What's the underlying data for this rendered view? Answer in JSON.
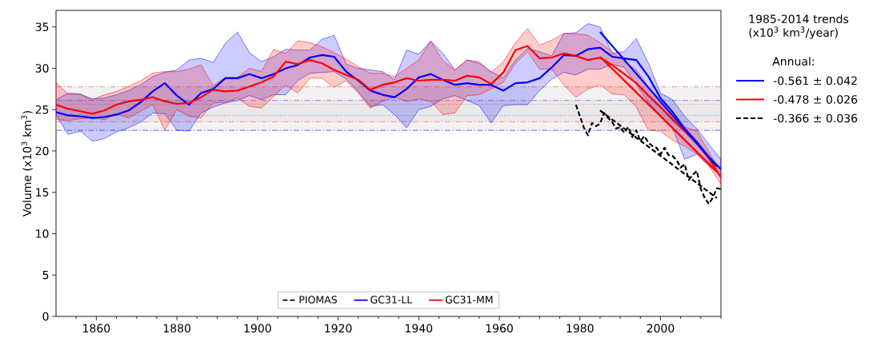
{
  "chart_data": {
    "type": "line",
    "ylabel": "Volume (x10$^{3}$ km$^{3}$)",
    "xlim": [
      1850,
      2015
    ],
    "ylim": [
      0,
      37
    ],
    "xticks": [
      {
        "value": 1855,
        "label": null
      },
      1860,
      {
        "value": 1865,
        "label": null
      },
      {
        "value": 1870,
        "label": null
      },
      {
        "value": 1875,
        "label": null
      },
      1880,
      {
        "value": 1885,
        "label": null
      },
      {
        "value": 1890,
        "label": null
      },
      {
        "value": 1895,
        "label": null
      },
      1900,
      {
        "value": 1905,
        "label": null
      },
      {
        "value": 1910,
        "label": null
      },
      {
        "value": 1915,
        "label": null
      },
      1920,
      {
        "value": 1925,
        "label": null
      },
      {
        "value": 1930,
        "label": null
      },
      {
        "value": 1935,
        "label": null
      },
      1940,
      {
        "value": 1945,
        "label": null
      },
      {
        "value": 1950,
        "label": null
      },
      {
        "value": 1955,
        "label": null
      },
      1960,
      {
        "value": 1965,
        "label": null
      },
      {
        "value": 1970,
        "label": null
      },
      {
        "value": 1975,
        "label": null
      },
      1980,
      {
        "value": 1985,
        "label": null
      },
      {
        "value": 1990,
        "label": null
      },
      {
        "value": 1995,
        "label": null
      },
      2000,
      {
        "value": 2005,
        "label": null
      },
      {
        "value": 2010,
        "label": null
      },
      {
        "value": 2015,
        "label": null
      }
    ],
    "yticks": [
      0,
      5,
      10,
      15,
      20,
      25,
      30,
      35
    ],
    "legend": "bottom",
    "marker": "none",
    "bands": [
      {
        "axis": "y",
        "from": 22.5,
        "to": 26.1,
        "color": "#d9d9d9"
      },
      {
        "axis": "y",
        "from": 23.55,
        "to": 27.75,
        "color": "#d9d9d9"
      }
    ],
    "ref_lines": [
      {
        "axis": "y",
        "value": 27.75,
        "color": "#ff8080",
        "line_style": "dashdot"
      },
      {
        "axis": "y",
        "value": 23.55,
        "color": "#ff8080",
        "line_style": "dashdot"
      },
      {
        "axis": "y",
        "value": 26.1,
        "color": "#8080ff",
        "line_style": "dashdot"
      },
      {
        "axis": "y",
        "value": 22.5,
        "color": "#8080ff",
        "line_style": "dashdot"
      },
      {
        "axis": "y",
        "value": 25.65,
        "color": "#ff8080",
        "line_style": "dotted"
      },
      {
        "axis": "y",
        "value": 24.3,
        "color": "#8080ff",
        "line_style": "dotted"
      }
    ],
    "series": [
      {
        "name": "PIOMAS",
        "color": "#000000",
        "line_style": "dashed",
        "x": [
          1979,
          1980,
          1981,
          1982,
          1983,
          1984,
          1985,
          1986,
          1987,
          1988,
          1989,
          1990,
          1991,
          1992,
          1993,
          1994,
          1995,
          1996,
          1997,
          1998,
          1999,
          2000,
          2001,
          2002,
          2003,
          2004,
          2005,
          2006,
          2007,
          2008,
          2009,
          2010,
          2011,
          2012,
          2013,
          2014,
          2015
        ],
        "values": [
          25.6,
          24.2,
          22.8,
          21.9,
          23.4,
          23.0,
          23.3,
          24.6,
          24.0,
          23.5,
          22.7,
          22.9,
          22.2,
          22.9,
          21.7,
          22.5,
          21.2,
          21.8,
          21.0,
          20.6,
          20.4,
          19.6,
          20.4,
          19.5,
          19.4,
          18.9,
          18.0,
          18.4,
          16.5,
          17.1,
          17.6,
          15.4,
          14.3,
          13.6,
          14.4,
          15.5,
          15.4
        ]
      },
      {
        "name": "GC31-LL",
        "color": "#0000ff",
        "line_style": "solid",
        "x": [
          1850,
          1853,
          1856,
          1859,
          1862,
          1865,
          1868,
          1871,
          1874,
          1877,
          1880,
          1883,
          1886,
          1889,
          1892,
          1895,
          1898,
          1901,
          1904,
          1907,
          1910,
          1913,
          1916,
          1919,
          1922,
          1925,
          1928,
          1931,
          1934,
          1937,
          1940,
          1943,
          1946,
          1949,
          1952,
          1955,
          1958,
          1961,
          1964,
          1967,
          1970,
          1973,
          1976,
          1979,
          1982,
          1985,
          1988,
          1991,
          1994,
          1997,
          2000,
          2003,
          2006,
          2009,
          2012,
          2015
        ],
        "values": [
          24.7,
          24.3,
          24.2,
          24.0,
          24.1,
          24.4,
          24.9,
          25.9,
          27.2,
          28.2,
          26.7,
          25.6,
          27.0,
          27.5,
          28.8,
          28.8,
          29.3,
          28.8,
          29.3,
          30.0,
          30.4,
          31.3,
          31.6,
          31.4,
          29.6,
          28.5,
          27.3,
          26.8,
          26.5,
          27.5,
          28.9,
          29.3,
          28.6,
          28.0,
          28.2,
          28.0,
          28.0,
          27.3,
          28.2,
          28.3,
          28.8,
          30.1,
          31.6,
          31.5,
          32.3,
          32.5,
          31.4,
          31.2,
          31.0,
          29.0,
          26.4,
          24.7,
          22.7,
          21.1,
          19.3,
          17.8
        ],
        "upper": [
          26.2,
          27.0,
          26.9,
          26.3,
          26.4,
          26.8,
          27.3,
          28.0,
          29.0,
          29.5,
          29.8,
          31.0,
          31.2,
          30.7,
          33.0,
          34.4,
          31.9,
          30.8,
          31.4,
          32.3,
          32.2,
          32.2,
          33.5,
          34.0,
          30.5,
          30.0,
          29.8,
          29.6,
          28.6,
          32.2,
          31.7,
          33.3,
          31.8,
          29.8,
          31.0,
          30.6,
          29.6,
          28.8,
          31.0,
          32.4,
          32.0,
          31.5,
          34.2,
          34.3,
          35.4,
          35.0,
          31.8,
          32.0,
          33.6,
          30.6,
          27.0,
          26.2,
          24.2,
          22.7,
          20.8,
          19.0
        ],
        "lower": [
          24.4,
          22.0,
          22.4,
          21.2,
          21.5,
          22.3,
          22.8,
          23.5,
          24.6,
          24.5,
          22.5,
          22.4,
          24.6,
          25.3,
          25.8,
          26.1,
          26.7,
          26.2,
          26.8,
          26.8,
          28.5,
          29.4,
          29.5,
          29.6,
          28.7,
          27.2,
          25.4,
          25.6,
          24.4,
          22.8,
          25.0,
          25.4,
          26.3,
          26.7,
          26.1,
          25.5,
          23.4,
          25.5,
          25.6,
          25.6,
          27.3,
          28.7,
          29.5,
          29.2,
          29.9,
          29.9,
          30.5,
          30.1,
          28.0,
          25.9,
          24.3,
          22.8,
          19.0,
          19.6,
          18.2,
          17.0
        ]
      },
      {
        "name": "GC31-MM",
        "color": "#ff0000",
        "line_style": "solid",
        "x": [
          1850,
          1853,
          1856,
          1859,
          1862,
          1865,
          1868,
          1871,
          1874,
          1877,
          1880,
          1883,
          1886,
          1889,
          1892,
          1895,
          1898,
          1901,
          1904,
          1907,
          1910,
          1913,
          1916,
          1919,
          1922,
          1925,
          1928,
          1931,
          1934,
          1937,
          1940,
          1943,
          1946,
          1949,
          1952,
          1955,
          1958,
          1961,
          1964,
          1967,
          1970,
          1973,
          1976,
          1979,
          1982,
          1985,
          1988,
          1991,
          1994,
          1997,
          2000,
          2003,
          2006,
          2009,
          2012,
          2015
        ],
        "values": [
          25.6,
          25.1,
          24.8,
          24.5,
          24.9,
          25.6,
          26.0,
          26.2,
          26.5,
          26.0,
          25.7,
          25.8,
          26.5,
          27.4,
          27.2,
          27.3,
          27.8,
          28.3,
          29.0,
          30.8,
          30.5,
          31.0,
          30.6,
          29.8,
          29.2,
          28.6,
          27.4,
          28.0,
          28.3,
          28.8,
          28.5,
          28.6,
          28.6,
          28.5,
          29.1,
          28.9,
          28.1,
          29.5,
          32.2,
          32.7,
          31.2,
          31.3,
          31.8,
          31.5,
          31.0,
          31.3,
          30.4,
          29.3,
          28.2,
          26.7,
          25.3,
          23.8,
          22.4,
          20.9,
          19.1,
          16.8
        ],
        "upper": [
          28.3,
          26.9,
          26.8,
          26.2,
          26.8,
          27.2,
          27.8,
          28.5,
          29.4,
          29.6,
          29.6,
          29.9,
          30.4,
          27.9,
          28.9,
          28.9,
          30.0,
          29.6,
          32.3,
          31.8,
          33.3,
          33.1,
          32.6,
          31.9,
          31.1,
          30.2,
          29.4,
          29.4,
          29.0,
          30.0,
          31.0,
          33.3,
          30.9,
          29.8,
          31.0,
          30.8,
          29.5,
          30.8,
          33.1,
          34.8,
          32.8,
          33.4,
          34.2,
          34.2,
          34.0,
          33.1,
          32.0,
          30.8,
          29.8,
          27.8,
          26.0,
          24.0,
          22.9,
          22.4,
          19.9,
          17.3
        ],
        "lower": [
          23.8,
          23.7,
          23.9,
          24.0,
          23.8,
          24.5,
          24.0,
          24.8,
          25.6,
          22.5,
          25.0,
          24.2,
          24.0,
          25.8,
          25.9,
          26.4,
          25.4,
          25.2,
          26.6,
          28.0,
          27.0,
          28.8,
          28.8,
          27.7,
          28.5,
          27.0,
          25.2,
          26.0,
          26.5,
          26.0,
          26.3,
          26.0,
          24.4,
          24.6,
          26.7,
          26.8,
          27.5,
          28.3,
          30.6,
          32.0,
          29.9,
          29.9,
          28.0,
          26.5,
          27.5,
          28.0,
          26.9,
          26.8,
          25.3,
          22.5,
          22.4,
          21.3,
          20.6,
          19.6,
          18.2,
          16.0
        ]
      },
      {
        "color": "#0000ff",
        "line_style": "solid",
        "x": [
          1985,
          2014
        ],
        "values": [
          34.4,
          18.1
        ]
      },
      {
        "color": "#ff0000",
        "line_style": "solid",
        "x": [
          1985,
          2014
        ],
        "values": [
          31.4,
          17.5
        ]
      },
      {
        "color": "#000000",
        "line_style": "dashed",
        "x": [
          1985,
          2014
        ],
        "values": [
          24.9,
          14.3
        ]
      }
    ],
    "annotations": [
      "1985-2014 trends (x10$^{3}$ km$^{3}$/year)",
      "Annual:",
      "-0.561 ± 0.042",
      "-0.478 ± 0.026",
      "-0.366 ± 0.036"
    ]
  }
}
